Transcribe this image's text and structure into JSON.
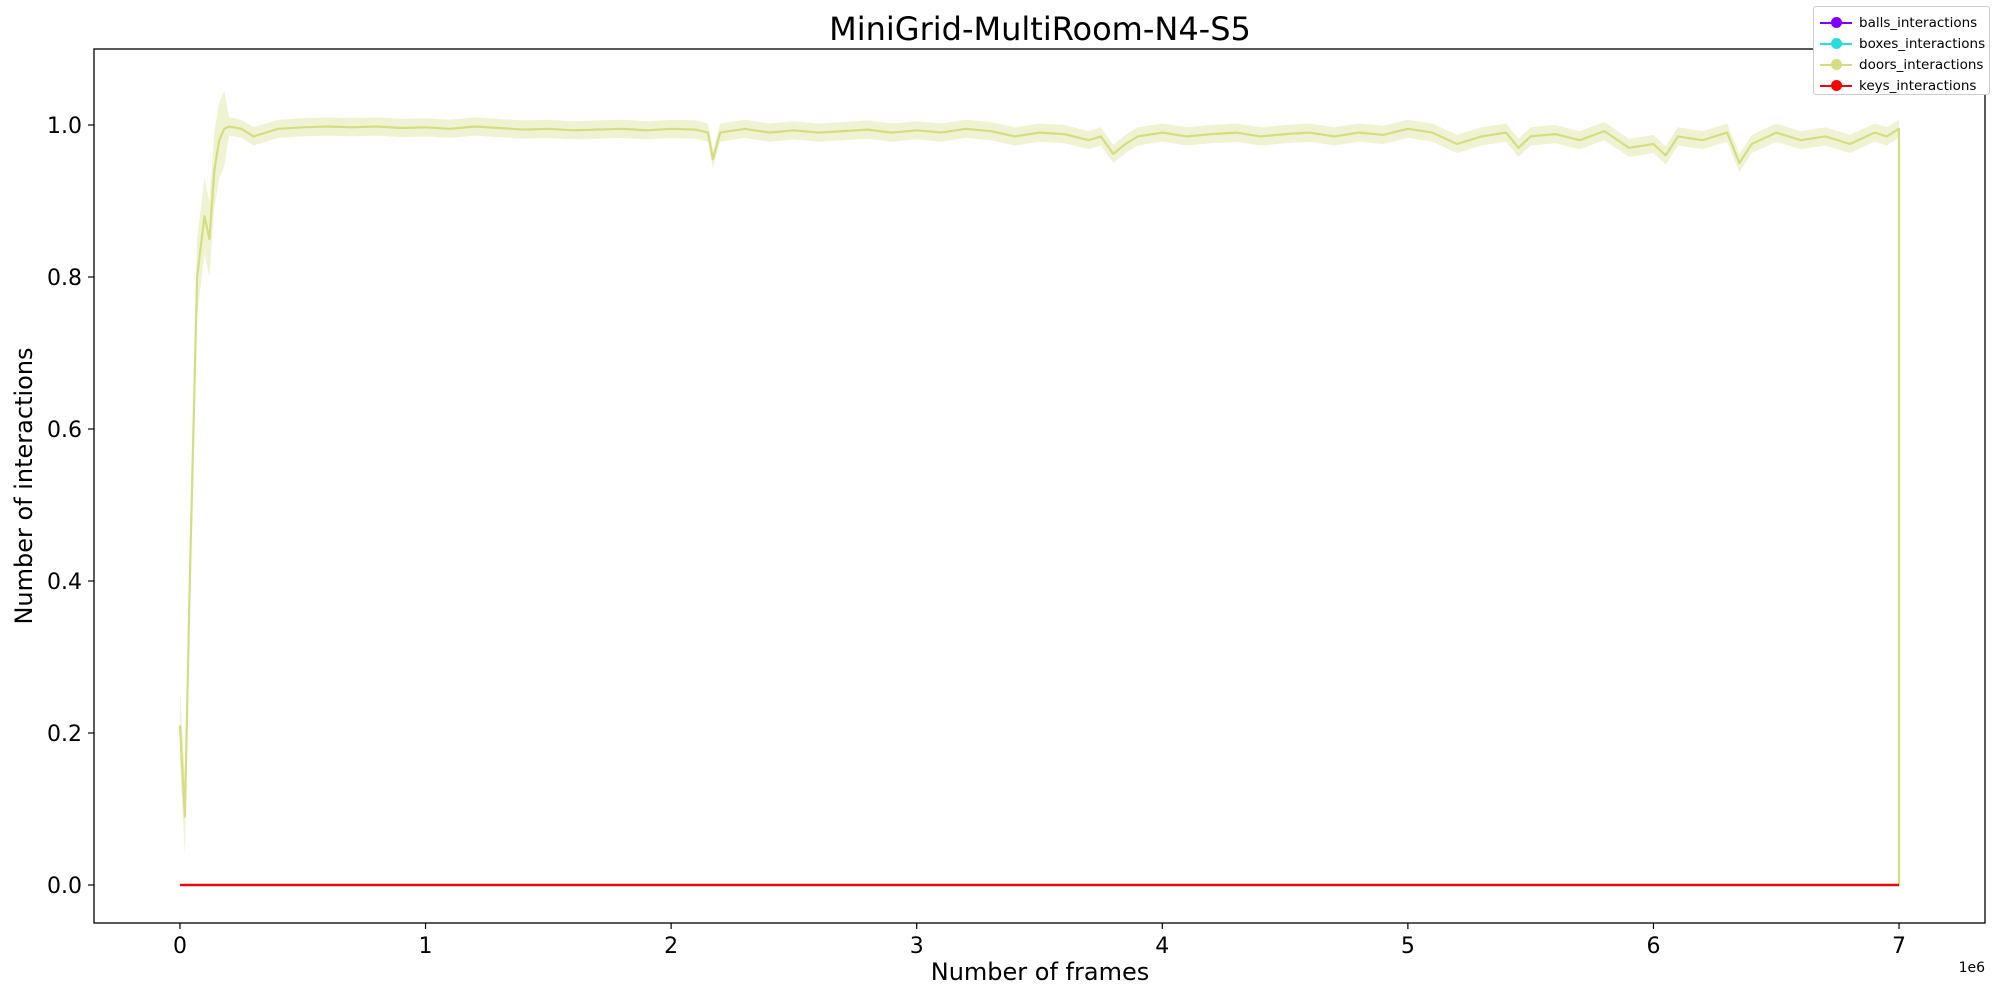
{
  "chart_data": {
    "type": "line",
    "title": "MiniGrid-MultiRoom-N4-S5",
    "xlabel": "Number of frames",
    "ylabel": "Number of interactions",
    "x_offset_label": "1e6",
    "xlim": [
      -0.35,
      7.35
    ],
    "ylim": [
      -0.05,
      1.1
    ],
    "x_scale_note": "x values in units of 1e6 frames",
    "xticks": [
      0,
      1,
      2,
      3,
      4,
      5,
      6,
      7
    ],
    "xtick_labels": [
      "0",
      "1",
      "2",
      "3",
      "4",
      "5",
      "6",
      "7"
    ],
    "yticks": [
      0.0,
      0.2,
      0.4,
      0.6,
      0.8,
      1.0
    ],
    "ytick_labels": [
      "0.0",
      "0.2",
      "0.4",
      "0.6",
      "0.8",
      "1.0"
    ],
    "grid": false,
    "legend_position": "top-right (outside axes)",
    "series": [
      {
        "name": "balls_interactions",
        "color": "#8000ff",
        "x": [
          0,
          7
        ],
        "y": [
          0,
          0
        ]
      },
      {
        "name": "boxes_interactions",
        "color": "#2adddd",
        "x": [
          0,
          7
        ],
        "y": [
          0,
          0
        ]
      },
      {
        "name": "doors_interactions",
        "color": "#d4dd80",
        "x": [
          0,
          0.02,
          0.04,
          0.07,
          0.1,
          0.12,
          0.14,
          0.16,
          0.18,
          0.2,
          0.25,
          0.3,
          0.35,
          0.4,
          0.5,
          0.6,
          0.7,
          0.8,
          0.9,
          1.0,
          1.1,
          1.2,
          1.3,
          1.4,
          1.5,
          1.6,
          1.7,
          1.8,
          1.9,
          2.0,
          2.1,
          2.15,
          2.17,
          2.2,
          2.3,
          2.4,
          2.5,
          2.6,
          2.7,
          2.8,
          2.9,
          3.0,
          3.1,
          3.2,
          3.3,
          3.4,
          3.5,
          3.6,
          3.7,
          3.75,
          3.8,
          3.85,
          3.9,
          4.0,
          4.1,
          4.2,
          4.3,
          4.4,
          4.5,
          4.6,
          4.7,
          4.8,
          4.9,
          5.0,
          5.1,
          5.2,
          5.3,
          5.4,
          5.45,
          5.5,
          5.6,
          5.7,
          5.8,
          5.9,
          6.0,
          6.05,
          6.1,
          6.2,
          6.3,
          6.35,
          6.4,
          6.5,
          6.6,
          6.7,
          6.8,
          6.9,
          6.95,
          7.0,
          7.0
        ],
        "y": [
          0.21,
          0.09,
          0.4,
          0.8,
          0.88,
          0.85,
          0.94,
          0.98,
          0.995,
          0.998,
          0.995,
          0.985,
          0.99,
          0.995,
          0.997,
          0.998,
          0.997,
          0.998,
          0.996,
          0.997,
          0.995,
          0.998,
          0.996,
          0.994,
          0.995,
          0.993,
          0.994,
          0.995,
          0.993,
          0.995,
          0.994,
          0.99,
          0.955,
          0.99,
          0.995,
          0.99,
          0.993,
          0.99,
          0.992,
          0.994,
          0.99,
          0.993,
          0.99,
          0.995,
          0.992,
          0.985,
          0.99,
          0.988,
          0.98,
          0.985,
          0.962,
          0.975,
          0.985,
          0.99,
          0.985,
          0.988,
          0.99,
          0.985,
          0.988,
          0.99,
          0.985,
          0.99,
          0.987,
          0.995,
          0.99,
          0.975,
          0.985,
          0.99,
          0.97,
          0.985,
          0.988,
          0.98,
          0.992,
          0.97,
          0.975,
          0.96,
          0.985,
          0.98,
          0.99,
          0.95,
          0.975,
          0.99,
          0.98,
          0.985,
          0.975,
          0.99,
          0.985,
          0.995,
          0.0
        ]
      },
      {
        "name": "keys_interactions",
        "color": "#ff0000",
        "x": [
          0,
          7
        ],
        "y": [
          0,
          0
        ]
      }
    ]
  }
}
